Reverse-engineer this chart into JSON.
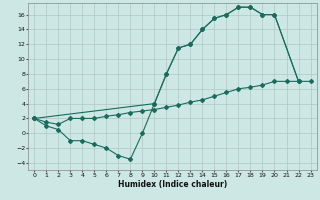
{
  "xlabel": "Humidex (Indice chaleur)",
  "bg_color": "#cde8e4",
  "grid_color": "#b0c8c4",
  "line_color": "#1a6b5a",
  "xlim": [
    -0.5,
    23.5
  ],
  "ylim": [
    -5,
    17.5
  ],
  "xticks": [
    0,
    1,
    2,
    3,
    4,
    5,
    6,
    7,
    8,
    9,
    10,
    11,
    12,
    13,
    14,
    15,
    16,
    17,
    18,
    19,
    20,
    21,
    22,
    23
  ],
  "yticks": [
    -4,
    -2,
    0,
    2,
    4,
    6,
    8,
    10,
    12,
    14,
    16
  ],
  "line1_x": [
    0,
    1,
    2,
    3,
    4,
    5,
    6,
    7,
    8,
    9,
    10,
    11,
    12,
    13,
    14,
    15,
    16,
    17,
    18,
    19,
    20,
    22
  ],
  "line1_y": [
    2,
    1,
    0.5,
    -1,
    -1,
    -1.5,
    -2,
    -3,
    -3.5,
    0,
    4,
    8,
    11.5,
    12,
    14,
    15.5,
    16,
    17,
    17,
    16,
    16,
    7
  ],
  "line2_x": [
    0,
    10,
    11,
    12,
    13,
    14,
    15,
    16,
    17,
    18,
    19,
    20,
    22
  ],
  "line2_y": [
    2,
    4,
    8,
    11.5,
    12,
    14,
    15.5,
    16,
    17,
    17,
    16,
    16,
    7
  ],
  "line3_x": [
    0,
    1,
    2,
    3,
    4,
    5,
    6,
    7,
    8,
    9,
    10,
    11,
    12,
    13,
    14,
    15,
    16,
    17,
    18,
    19,
    20,
    21,
    22,
    23
  ],
  "line3_y": [
    2,
    1.5,
    1.2,
    2,
    2,
    2,
    2.3,
    2.5,
    2.8,
    3,
    3.2,
    3.5,
    3.8,
    4.2,
    4.5,
    5.0,
    5.5,
    6.0,
    6.2,
    6.5,
    7.0,
    7.0,
    7.0,
    7.0
  ]
}
